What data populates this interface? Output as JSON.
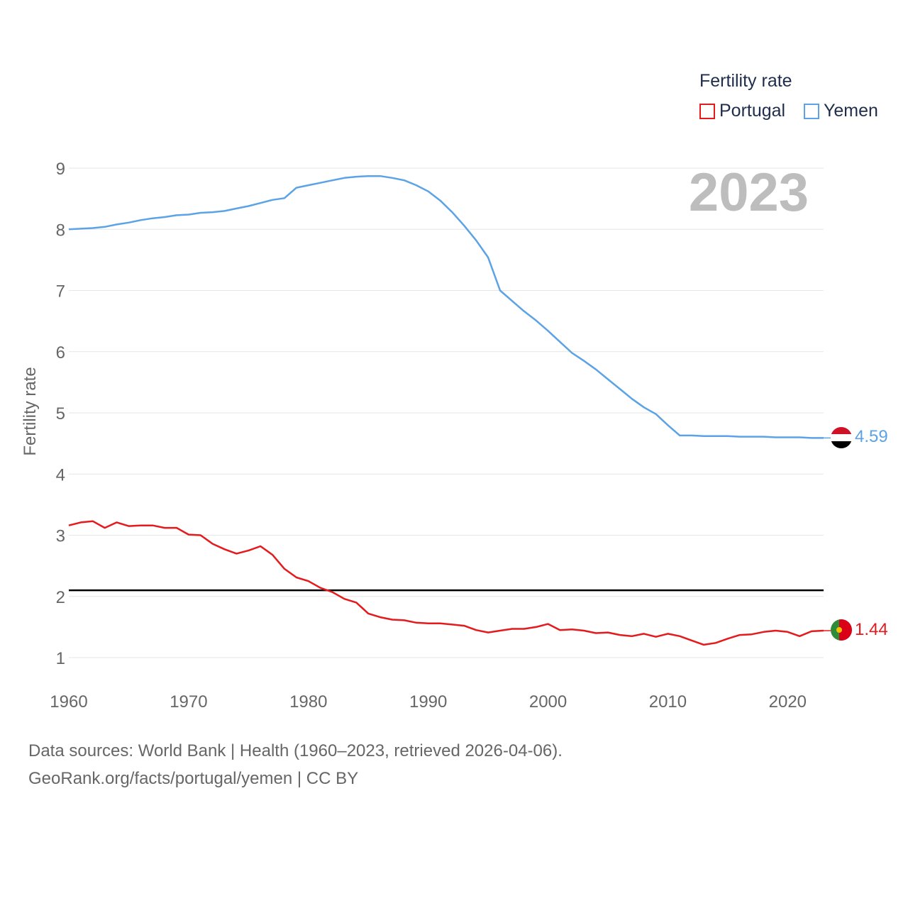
{
  "legend": {
    "title": "Fertility rate",
    "items": [
      {
        "label": "Portugal",
        "color": "#e41a1c"
      },
      {
        "label": "Yemen",
        "color": "#5ba3e6"
      }
    ]
  },
  "current_year": "2023",
  "end_labels": {
    "portugal": "1.44",
    "yemen": "4.59"
  },
  "sources": {
    "line1": "Data sources: World Bank | Health (1960–2023, retrieved 2026-04-06).",
    "line2": "GeoRank.org/facts/portugal/yemen | CC BY"
  },
  "chart_data": {
    "type": "line",
    "title": "",
    "xlabel": "",
    "ylabel": "Fertility rate",
    "xlim": [
      1960,
      2023
    ],
    "ylim": [
      1,
      9
    ],
    "x_ticks": [
      1960,
      1970,
      1980,
      1990,
      2000,
      2010,
      2020
    ],
    "y_ticks": [
      1,
      2,
      3,
      4,
      5,
      6,
      7,
      8,
      9
    ],
    "reference_line": {
      "y": 2.1,
      "color": "#000000"
    },
    "x": [
      1960,
      1961,
      1962,
      1963,
      1964,
      1965,
      1966,
      1967,
      1968,
      1969,
      1970,
      1971,
      1972,
      1973,
      1974,
      1975,
      1976,
      1977,
      1978,
      1979,
      1980,
      1981,
      1982,
      1983,
      1984,
      1985,
      1986,
      1987,
      1988,
      1989,
      1990,
      1991,
      1992,
      1993,
      1994,
      1995,
      1996,
      1997,
      1998,
      1999,
      2000,
      2001,
      2002,
      2003,
      2004,
      2005,
      2006,
      2007,
      2008,
      2009,
      2010,
      2011,
      2012,
      2013,
      2014,
      2015,
      2016,
      2017,
      2018,
      2019,
      2020,
      2021,
      2022,
      2023
    ],
    "series": [
      {
        "name": "Portugal",
        "color": "#e41a1c",
        "values": [
          3.16,
          3.21,
          3.23,
          3.12,
          3.21,
          3.15,
          3.16,
          3.16,
          3.12,
          3.12,
          3.01,
          3.0,
          2.86,
          2.77,
          2.7,
          2.75,
          2.82,
          2.68,
          2.45,
          2.31,
          2.25,
          2.14,
          2.07,
          1.96,
          1.9,
          1.72,
          1.66,
          1.62,
          1.61,
          1.57,
          1.56,
          1.56,
          1.54,
          1.52,
          1.45,
          1.41,
          1.44,
          1.47,
          1.47,
          1.5,
          1.55,
          1.45,
          1.46,
          1.44,
          1.4,
          1.41,
          1.37,
          1.35,
          1.39,
          1.34,
          1.39,
          1.35,
          1.28,
          1.21,
          1.24,
          1.31,
          1.37,
          1.38,
          1.42,
          1.44,
          1.42,
          1.35,
          1.43,
          1.44
        ]
      },
      {
        "name": "Yemen",
        "color": "#5ba3e6",
        "values": [
          8.0,
          8.01,
          8.02,
          8.04,
          8.08,
          8.11,
          8.15,
          8.18,
          8.2,
          8.23,
          8.24,
          8.27,
          8.28,
          8.3,
          8.34,
          8.38,
          8.43,
          8.48,
          8.51,
          8.68,
          8.72,
          8.76,
          8.8,
          8.84,
          8.86,
          8.87,
          8.87,
          8.84,
          8.8,
          8.72,
          8.62,
          8.47,
          8.28,
          8.06,
          7.82,
          7.54,
          7.0,
          6.83,
          6.66,
          6.51,
          6.34,
          6.16,
          5.98,
          5.85,
          5.71,
          5.55,
          5.39,
          5.23,
          5.09,
          4.98,
          4.8,
          4.63,
          4.63,
          4.62,
          4.62,
          4.62,
          4.61,
          4.61,
          4.61,
          4.6,
          4.6,
          4.6,
          4.59,
          4.59
        ]
      }
    ]
  }
}
